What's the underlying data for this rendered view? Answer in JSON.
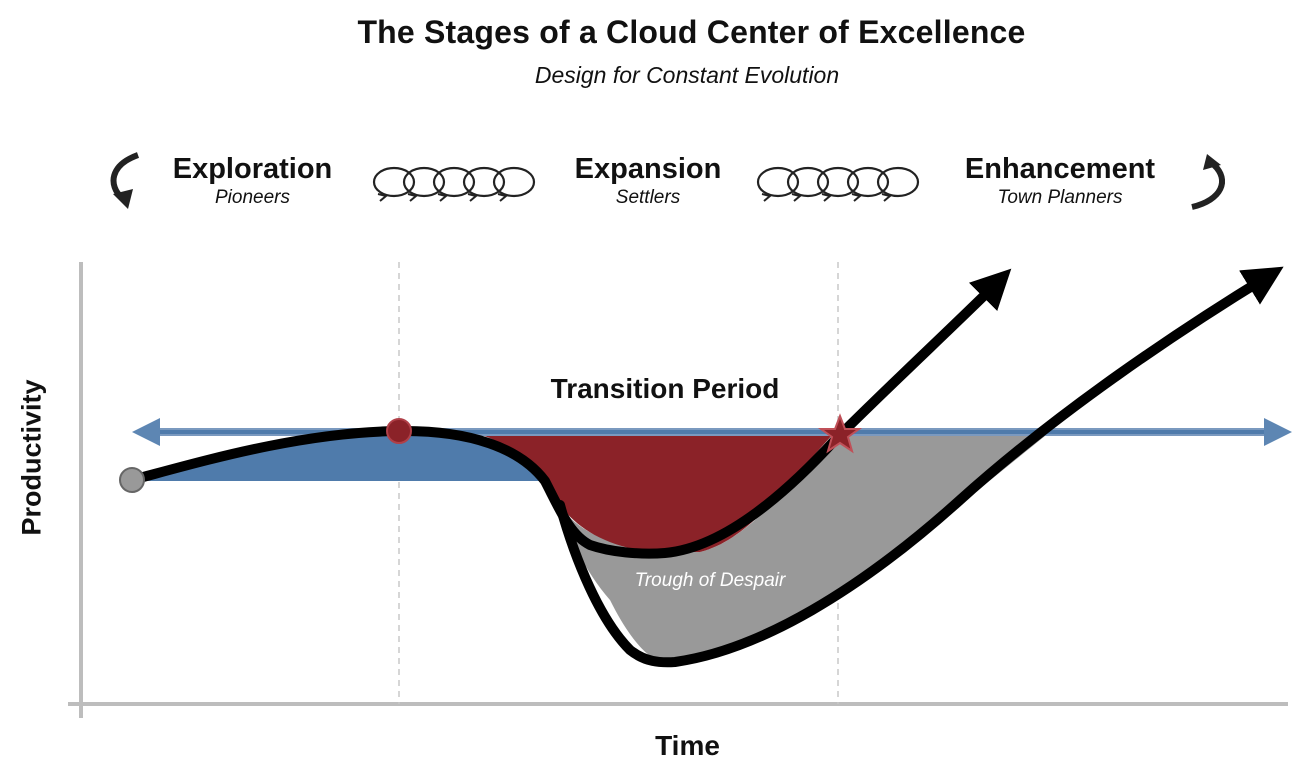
{
  "header": {
    "title": "The Stages of a Cloud Center of Excellence",
    "subtitle": "Design for Constant Evolution"
  },
  "stages": [
    {
      "name": "Exploration",
      "role": "Pioneers"
    },
    {
      "name": "Expansion",
      "role": "Settlers"
    },
    {
      "name": "Enhancement",
      "role": "Town Planners"
    }
  ],
  "diagram": {
    "transition_label": "Transition Period",
    "trough_label": "Trough of Despair",
    "y_axis_label": "Productivity",
    "x_axis_label": "Time"
  },
  "colors": {
    "blue_area": "#4f7bab",
    "red_area": "#8b2228",
    "gray_area": "#999999",
    "curve": "#000000",
    "axis": "#bdbdbd",
    "guide": "#c8c8c8"
  }
}
